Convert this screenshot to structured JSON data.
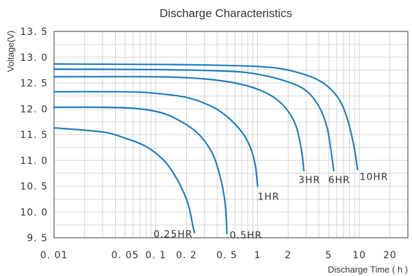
{
  "chart_data": {
    "type": "line",
    "title": "Discharge Characteristics",
    "xlabel": "Discharge Time ( h )",
    "ylabel": "Voltage(V)",
    "x_scale": "log",
    "xlim": [
      0.01,
      30
    ],
    "ylim": [
      9.5,
      13.5
    ],
    "grid": true,
    "x_ticks": [
      {
        "value": 0.01,
        "label": "0. 01"
      },
      {
        "value": 0.05,
        "label": "0. 05"
      },
      {
        "value": 0.1,
        "label": "0. 1"
      },
      {
        "value": 0.2,
        "label": "0. 2"
      },
      {
        "value": 0.5,
        "label": "0. 5"
      },
      {
        "value": 1,
        "label": "1"
      },
      {
        "value": 2,
        "label": "2"
      },
      {
        "value": 5,
        "label": "5"
      },
      {
        "value": 10,
        "label": "10"
      },
      {
        "value": 20,
        "label": "20"
      }
    ],
    "y_ticks": [
      {
        "value": 13.5,
        "label": "13. 5"
      },
      {
        "value": 13.0,
        "label": "13. 0"
      },
      {
        "value": 12.5,
        "label": "12. 5"
      },
      {
        "value": 12.0,
        "label": "12. 0"
      },
      {
        "value": 11.5,
        "label": "11. 5"
      },
      {
        "value": 11.0,
        "label": "11. 0"
      },
      {
        "value": 10.5,
        "label": "10. 5"
      },
      {
        "value": 10.0,
        "label": "10. 0"
      },
      {
        "value": 9.5,
        "label": "9. 5"
      }
    ],
    "series": [
      {
        "name": "0.25HR",
        "color": "#1a7bbf",
        "x": [
          0.01,
          0.03,
          0.05,
          0.08,
          0.12,
          0.16,
          0.2,
          0.22,
          0.23,
          0.24
        ],
        "y": [
          11.63,
          11.55,
          11.43,
          11.27,
          11.0,
          10.65,
          10.25,
          9.95,
          9.75,
          9.6
        ]
      },
      {
        "name": "0.5HR",
        "color": "#1a7bbf",
        "x": [
          0.01,
          0.03,
          0.06,
          0.1,
          0.15,
          0.25,
          0.35,
          0.42,
          0.47,
          0.49,
          0.5
        ],
        "y": [
          12.03,
          12.03,
          12.01,
          11.95,
          11.83,
          11.55,
          11.18,
          10.75,
          10.3,
          9.95,
          9.58
        ]
      },
      {
        "name": "1HR",
        "color": "#1a7bbf",
        "x": [
          0.01,
          0.05,
          0.1,
          0.2,
          0.35,
          0.5,
          0.7,
          0.85,
          0.95,
          1.0
        ],
        "y": [
          12.33,
          12.33,
          12.3,
          12.22,
          12.05,
          11.85,
          11.55,
          11.25,
          10.9,
          10.5
        ]
      },
      {
        "name": "3HR",
        "color": "#1a7bbf",
        "x": [
          0.01,
          0.1,
          0.3,
          0.6,
          1.0,
          1.5,
          2.0,
          2.4,
          2.7,
          2.85
        ],
        "y": [
          12.62,
          12.62,
          12.58,
          12.5,
          12.38,
          12.2,
          11.95,
          11.65,
          11.2,
          10.8
        ]
      },
      {
        "name": "6HR",
        "color": "#1a7bbf",
        "x": [
          0.01,
          0.1,
          0.5,
          1.0,
          2.0,
          3.0,
          4.0,
          4.8,
          5.3,
          5.6
        ],
        "y": [
          12.77,
          12.76,
          12.73,
          12.67,
          12.52,
          12.35,
          12.05,
          11.65,
          11.15,
          10.8
        ]
      },
      {
        "name": "10HR",
        "color": "#1a7bbf",
        "x": [
          0.01,
          0.1,
          0.3,
          1.0,
          2.0,
          4.0,
          6.0,
          7.5,
          8.8,
          9.6
        ],
        "y": [
          12.87,
          12.86,
          12.85,
          12.82,
          12.75,
          12.55,
          12.25,
          11.85,
          11.3,
          10.82
        ]
      }
    ],
    "annotations": [
      {
        "text": "0.25HR",
        "series": "0.25HR"
      },
      {
        "text": "0.5HR",
        "series": "0.5HR"
      },
      {
        "text": "1HR",
        "series": "1HR"
      },
      {
        "text": "3HR",
        "series": "3HR"
      },
      {
        "text": "6HR",
        "series": "6HR"
      },
      {
        "text": "10HR",
        "series": "10HR"
      }
    ]
  }
}
